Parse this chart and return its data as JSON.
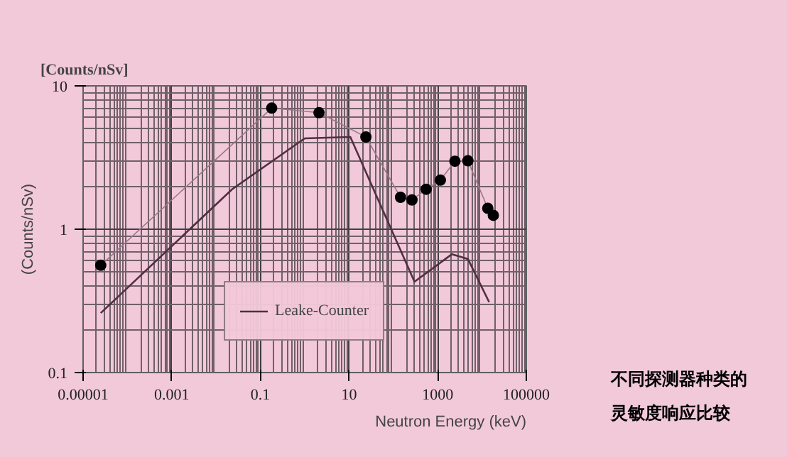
{
  "chart_data": {
    "type": "line",
    "title": "[Counts/nSv]",
    "ylabel": "(Counts/nSv)",
    "xlabel": "Neutron Energy (keV)",
    "annotations": [
      "不同探测器种类的灵敏度响应比较"
    ],
    "log": "xy",
    "grid": true,
    "legend": "bottom",
    "xlim": [
      1e-05,
      100000
    ],
    "ylim": [
      0.1,
      10
    ],
    "xticks": [
      {
        "value": 1e-05,
        "label": "0.00001"
      },
      {
        "value": 0.001,
        "label": "0.001"
      },
      0.1,
      10,
      1000,
      100000
    ],
    "yticks": [
      0.1,
      1,
      10
    ],
    "series": [
      {
        "color": "#000000",
        "marker": "circle",
        "x": [
          2.5e-05,
          0.18,
          2.1,
          24,
          145,
          263,
          550,
          1150,
          2450,
          4800,
          13500,
          18000
        ],
        "values": [
          0.56,
          7.0,
          6.5,
          4.4,
          1.67,
          1.6,
          1.9,
          2.2,
          2.98,
          3.0,
          1.4,
          1.25
        ]
      },
      {
        "name": "Leake-Counter",
        "color": "#503040",
        "marker": "none",
        "x": [
          2.5e-05,
          0.023,
          1.0,
          10.7,
          300,
          2100,
          4800,
          14500
        ],
        "values": [
          0.26,
          1.9,
          4.3,
          4.4,
          0.43,
          0.67,
          0.62,
          0.31
        ]
      }
    ]
  }
}
